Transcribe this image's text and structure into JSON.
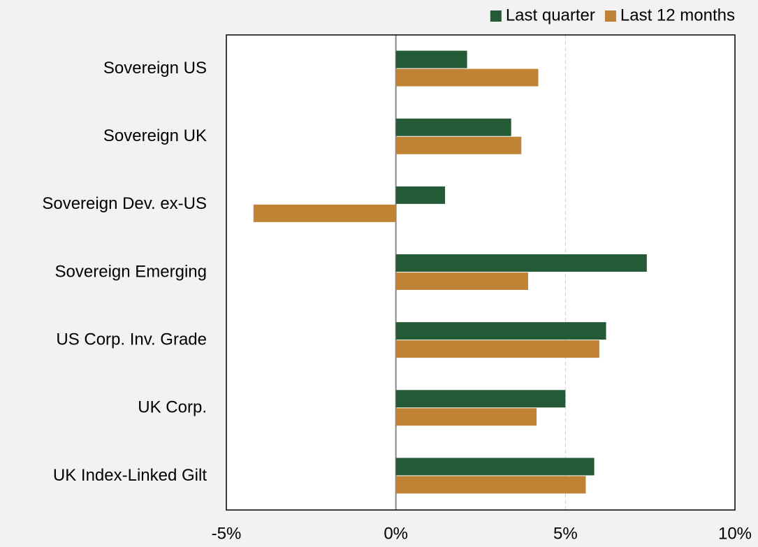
{
  "chart_data": {
    "type": "hbar",
    "categories": [
      "Sovereign US",
      "Sovereign UK",
      "Sovereign Dev. ex-US",
      "Sovereign Emerging",
      "US Corp. Inv. Grade",
      "UK Corp.",
      "UK Index-Linked Gilt"
    ],
    "series": [
      {
        "name": "Last quarter",
        "color": "#245a35",
        "values": [
          2.1,
          3.4,
          1.45,
          7.4,
          6.2,
          5.0,
          5.85
        ]
      },
      {
        "name": "Last 12 months",
        "color": "#c08235",
        "values": [
          4.2,
          3.7,
          -4.2,
          3.9,
          6.0,
          4.15,
          5.6
        ]
      }
    ],
    "xlim": [
      -5,
      10
    ],
    "xticks": [
      {
        "value": -5,
        "label": "-5%"
      },
      {
        "value": 0,
        "label": "0%"
      },
      {
        "value": 5,
        "label": "5%"
      },
      {
        "value": 10,
        "label": "10%"
      }
    ],
    "grid": true,
    "legend": "top-right"
  }
}
